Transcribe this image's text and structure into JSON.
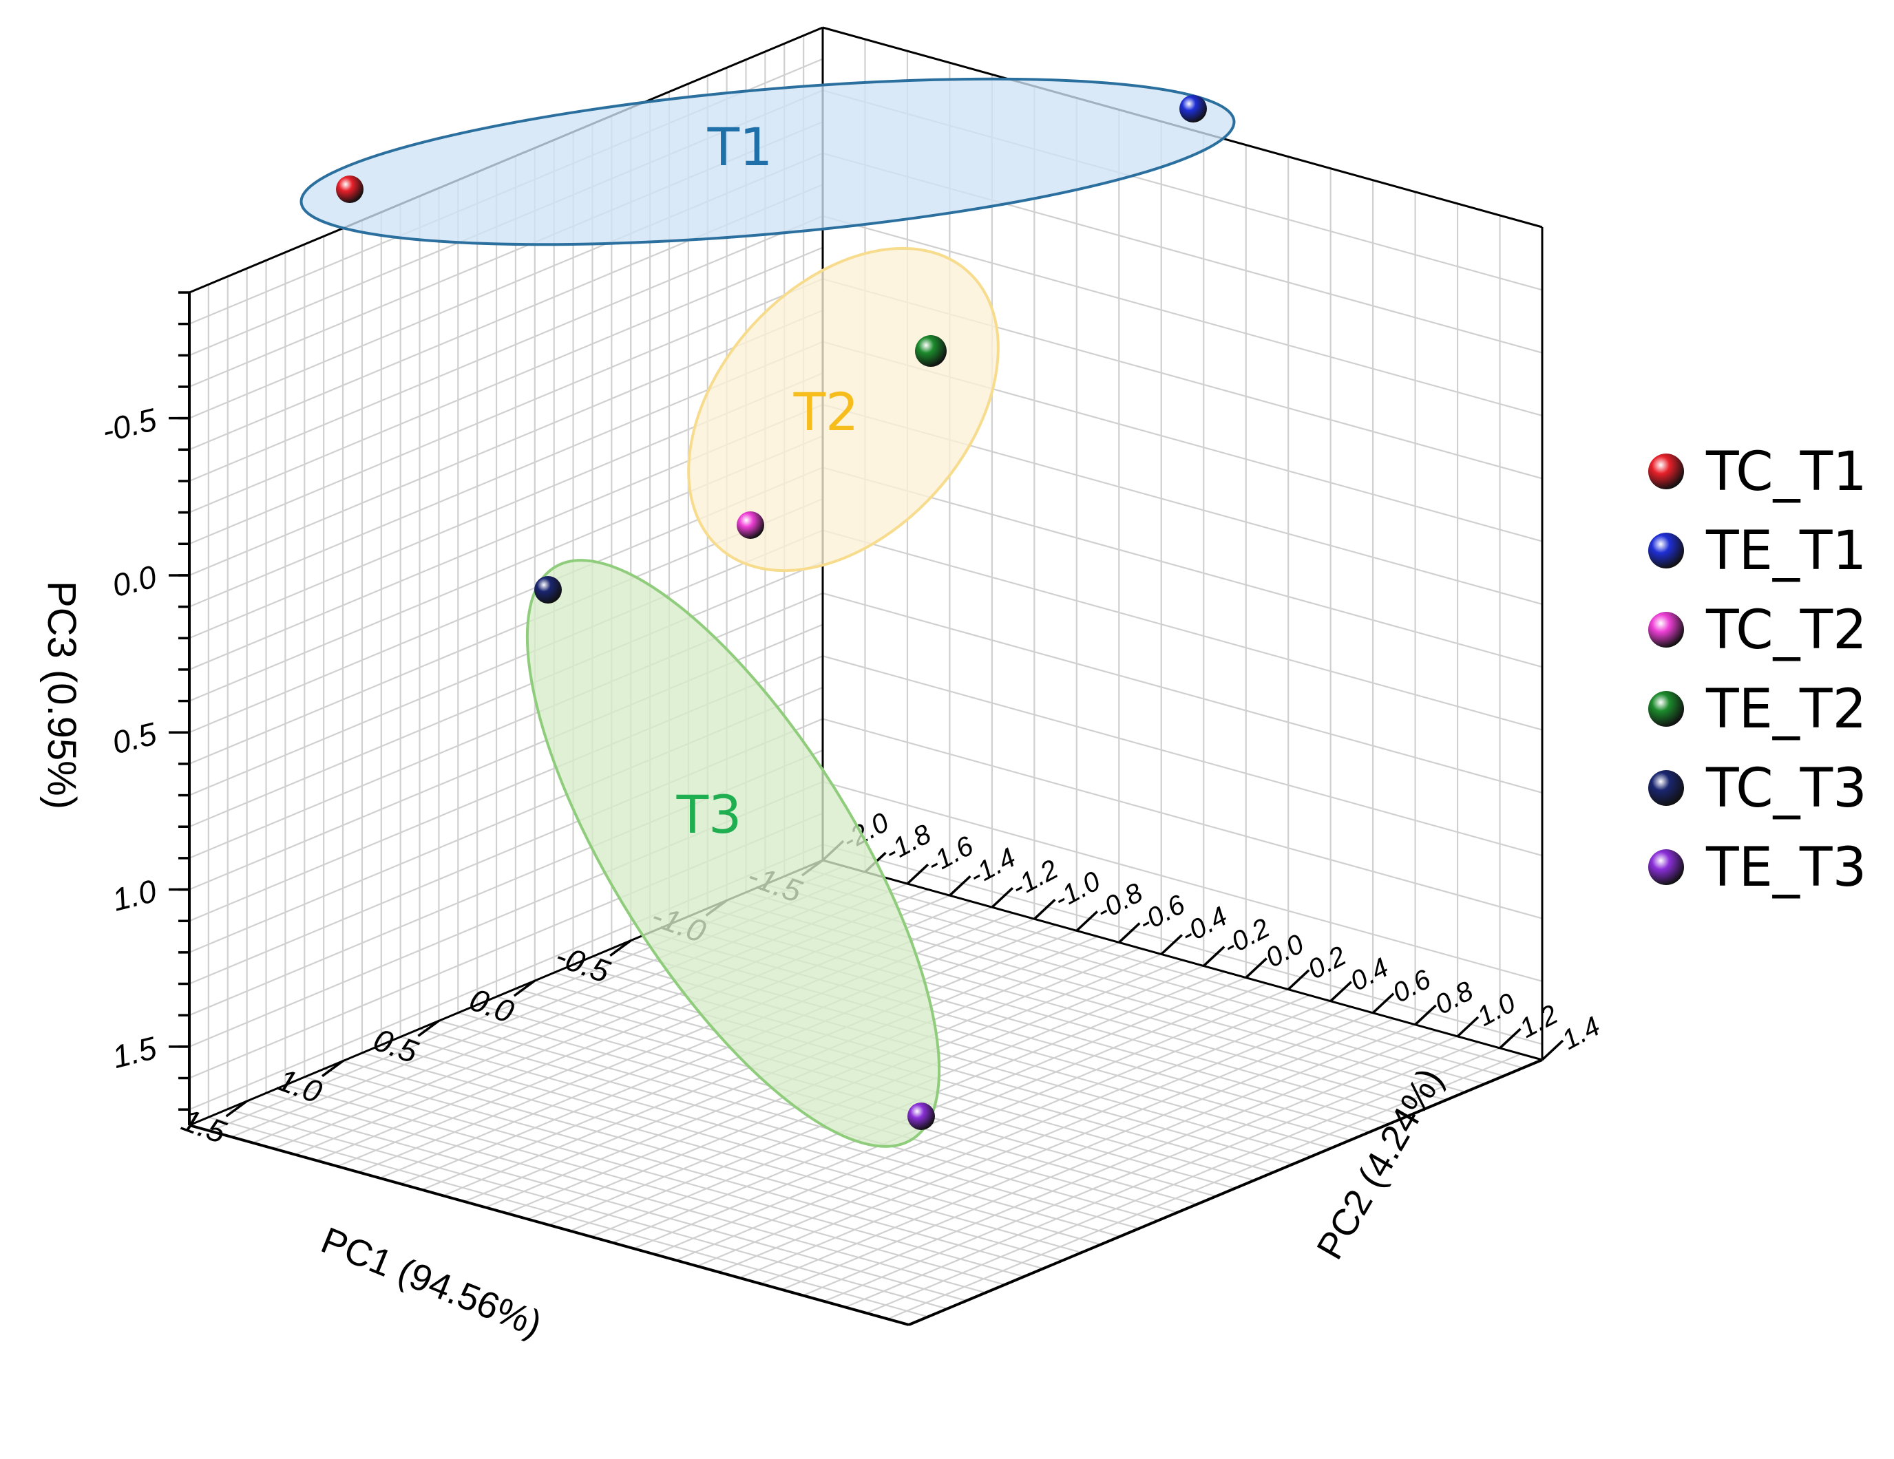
{
  "chart_data": {
    "type": "scatter",
    "dimensions": 3,
    "axes": {
      "x": {
        "label": "PC1 (94.56%)",
        "range": [
          -1.5,
          1.8
        ],
        "ticks": [
          "-1.5",
          "-1.0",
          "-0.5",
          "0.0",
          "0.5",
          "1.0",
          "1.5"
        ]
      },
      "y": {
        "label": "PC2 (4.24%)",
        "range": [
          -2.0,
          1.4
        ],
        "ticks": [
          "-2.0",
          "-1.8",
          "-1.6",
          "-1.4",
          "-1.2",
          "-1.0",
          "-0.8",
          "-0.6",
          "-0.4",
          "-0.2",
          "0.0",
          "0.2",
          "0.4",
          "0.6",
          "0.8",
          "1.0",
          "1.2",
          "1.4"
        ]
      },
      "z": {
        "label": "PC3 (0.95%)",
        "range": [
          -0.9,
          1.75
        ],
        "reversed": true,
        "ticks": [
          "-0.5",
          "0.0",
          "0.5",
          "1.0",
          "1.5"
        ]
      }
    },
    "grid": true,
    "legend_position": "right",
    "series": [
      {
        "name": "TC_T1",
        "color": "#e8202a",
        "points": [
          {
            "x": -1.35,
            "y": -1.65,
            "z": -0.75
          }
        ]
      },
      {
        "name": "TE_T1",
        "color": "#1f2fd6",
        "points": [
          {
            "x": 1.35,
            "y": -1.75,
            "z": -0.9
          }
        ]
      },
      {
        "name": "TC_T2",
        "color": "#ee3fd6",
        "points": [
          {
            "x": -0.5,
            "y": -0.9,
            "z": 0.0
          }
        ]
      },
      {
        "name": "TE_T2",
        "color": "#1c8a2c",
        "points": [
          {
            "x": 0.35,
            "y": -1.2,
            "z": -0.4
          }
        ]
      },
      {
        "name": "TC_T3",
        "color": "#1a2670",
        "points": [
          {
            "x": -1.2,
            "y": -0.7,
            "z": 0.2
          }
        ]
      },
      {
        "name": "TE_T3",
        "color": "#8a2fd8",
        "points": [
          {
            "x": 1.4,
            "y": 0.0,
            "z": 1.5
          }
        ]
      }
    ],
    "groups": [
      {
        "label": "T1",
        "color": "#1f6fa8",
        "fill": "#cfe3f5",
        "stroke": "#2a6f9e",
        "members": [
          "TC_T1",
          "TE_T1"
        ]
      },
      {
        "label": "T2",
        "color": "#f6bd1c",
        "fill": "#fdf1d6",
        "stroke": "#f7dc8e",
        "members": [
          "TC_T2",
          "TE_T2"
        ]
      },
      {
        "label": "T3",
        "color": "#1fae50",
        "fill": "#d7ecc8",
        "stroke": "#8fcd7c",
        "members": [
          "TC_T3",
          "TE_T3"
        ]
      }
    ]
  }
}
